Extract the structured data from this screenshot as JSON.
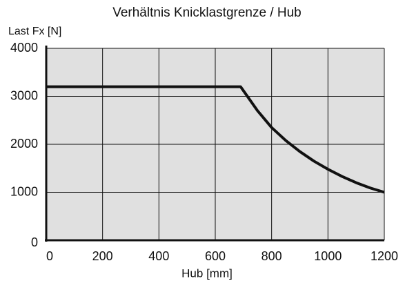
{
  "chart_data": {
    "type": "line",
    "title": "Verhältnis Knicklastgrenze / Hub",
    "y_label": "Last Fx [N]",
    "x_label": "Hub [mm]",
    "x": [
      0,
      690,
      750,
      800,
      850,
      900,
      950,
      1000,
      1050,
      1100,
      1150,
      1200
    ],
    "series": [
      {
        "color": "#111111",
        "values": [
          3200,
          3200,
          2700,
          2350,
          2080,
          1850,
          1650,
          1480,
          1330,
          1200,
          1090,
          1000
        ]
      }
    ],
    "xlim": [
      0,
      1200
    ],
    "xticks": [
      0,
      200,
      400,
      600,
      800,
      1000,
      1200
    ],
    "ylim": [
      0,
      4000
    ],
    "yticks": [
      0,
      1000,
      2000,
      3000,
      4000
    ],
    "grid": true,
    "plot_background": "#e0e0e0"
  }
}
